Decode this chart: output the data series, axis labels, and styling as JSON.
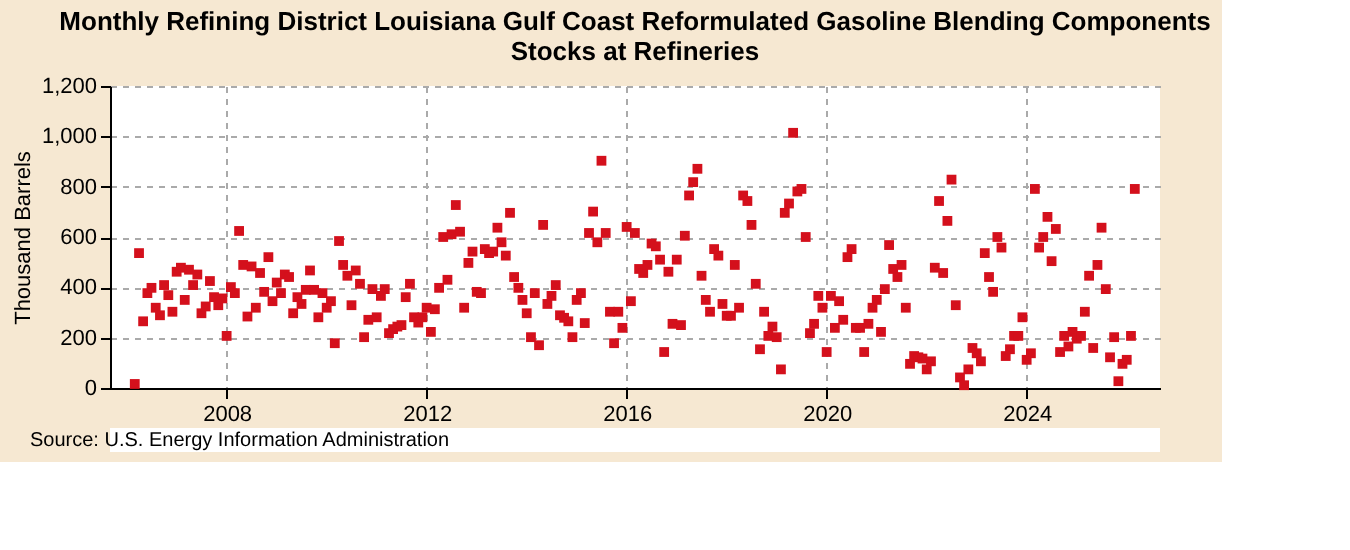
{
  "chart_data": {
    "type": "scatter",
    "title": "Monthly Refining District Louisiana Gulf Coast Reformulated Gasoline Blending Components Stocks at Refineries",
    "ylabel": "Thousand Barrels",
    "annotations": [
      "Source: U.S. Energy Information Administration"
    ],
    "series": [
      {
        "color": "#d4101c",
        "x": [
          "2006-03",
          "2006-04",
          "2006-05",
          "2006-06",
          "2006-07",
          "2006-08",
          "2006-09",
          "2006-10",
          "2006-11",
          "2006-12",
          "2007-01",
          "2007-02",
          "2007-03",
          "2007-04",
          "2007-05",
          "2007-06",
          "2007-07",
          "2007-08",
          "2007-09",
          "2007-10",
          "2007-11",
          "2007-12",
          "2008-01",
          "2008-02",
          "2008-03",
          "2008-04",
          "2008-05",
          "2008-06",
          "2008-07",
          "2008-08",
          "2008-09",
          "2008-10",
          "2008-11",
          "2008-12",
          "2009-01",
          "2009-02",
          "2009-03",
          "2009-04",
          "2009-05",
          "2009-06",
          "2009-07",
          "2009-08",
          "2009-09",
          "2009-10",
          "2009-11",
          "2009-12",
          "2010-01",
          "2010-02",
          "2010-03",
          "2010-04",
          "2010-05",
          "2010-06",
          "2010-07",
          "2010-08",
          "2010-09",
          "2010-10",
          "2010-11",
          "2010-12",
          "2011-01",
          "2011-02",
          "2011-03",
          "2011-04",
          "2011-05",
          "2011-06",
          "2011-07",
          "2011-08",
          "2011-09",
          "2011-10",
          "2011-11",
          "2011-12",
          "2012-01",
          "2012-02",
          "2012-03",
          "2012-04",
          "2012-05",
          "2012-06",
          "2012-07",
          "2012-08",
          "2012-09",
          "2012-10",
          "2012-11",
          "2012-12",
          "2013-01",
          "2013-02",
          "2013-03",
          "2013-04",
          "2013-05",
          "2013-06",
          "2013-07",
          "2013-08",
          "2013-09",
          "2013-10",
          "2013-11",
          "2013-12",
          "2014-01",
          "2014-02",
          "2014-03",
          "2014-04",
          "2014-05",
          "2014-06",
          "2014-07",
          "2014-08",
          "2014-09",
          "2014-10",
          "2014-11",
          "2014-12",
          "2015-01",
          "2015-02",
          "2015-03",
          "2015-04",
          "2015-05",
          "2015-06",
          "2015-07",
          "2015-08",
          "2015-09",
          "2015-10",
          "2015-11",
          "2015-12",
          "2016-01",
          "2016-02",
          "2016-03",
          "2016-04",
          "2016-05",
          "2016-06",
          "2016-07",
          "2016-08",
          "2016-09",
          "2016-10",
          "2016-11",
          "2016-12",
          "2017-01",
          "2017-02",
          "2017-03",
          "2017-04",
          "2017-05",
          "2017-06",
          "2017-07",
          "2017-08",
          "2017-09",
          "2017-10",
          "2017-11",
          "2017-12",
          "2018-01",
          "2018-02",
          "2018-03",
          "2018-04",
          "2018-05",
          "2018-06",
          "2018-07",
          "2018-08",
          "2018-09",
          "2018-10",
          "2018-11",
          "2018-12",
          "2019-01",
          "2019-02",
          "2019-03",
          "2019-04",
          "2019-05",
          "2019-06",
          "2019-07",
          "2019-08",
          "2019-09",
          "2019-10",
          "2019-11",
          "2019-12",
          "2020-01",
          "2020-02",
          "2020-03",
          "2020-04",
          "2020-05",
          "2020-06",
          "2020-07",
          "2020-08",
          "2020-09",
          "2020-10",
          "2020-11",
          "2020-12",
          "2021-01",
          "2021-02",
          "2021-03",
          "2021-04",
          "2021-05",
          "2021-06",
          "2021-07",
          "2021-08",
          "2021-09",
          "2021-10",
          "2021-11",
          "2021-12",
          "2022-01",
          "2022-02",
          "2022-03",
          "2022-04",
          "2022-05",
          "2022-06",
          "2022-07",
          "2022-08",
          "2022-09",
          "2022-10",
          "2022-11",
          "2022-12",
          "2023-01",
          "2023-02",
          "2023-03",
          "2023-04",
          "2023-05",
          "2023-06",
          "2023-07",
          "2023-08",
          "2023-09",
          "2023-10",
          "2023-11",
          "2023-12",
          "2024-01",
          "2024-02",
          "2024-03",
          "2024-04",
          "2024-05",
          "2024-06",
          "2024-07",
          "2024-08",
          "2024-09",
          "2024-10",
          "2024-11",
          "2024-12",
          "2025-01",
          "2025-02",
          "2025-03",
          "2025-04",
          "2025-05",
          "2025-06",
          "2025-07",
          "2025-08",
          "2025-09",
          "2025-10",
          "2025-11",
          "2025-12",
          "2026-01",
          "2026-02",
          "2026-03"
        ],
        "values": [
          16,
          536,
          265,
          377,
          398,
          319,
          289,
          409,
          369,
          303,
          462,
          478,
          350,
          470,
          409,
          451,
          297,
          324,
          425,
          361,
          329,
          356,
          207,
          401,
          377,
          624,
          489,
          284,
          483,
          319,
          457,
          382,
          520,
          345,
          419,
          377,
          451,
          441,
          297,
          361,
          334,
          390,
          467,
          390,
          281,
          377,
          319,
          345,
          178,
          584,
          489,
          446,
          329,
          467,
          414,
          202,
          271,
          393,
          281,
          366,
          393,
          218,
          234,
          244,
          250,
          361,
          414,
          281,
          260,
          281,
          319,
          223,
          313,
          398,
          600,
          430,
          611,
          727,
          621,
          319,
          497,
          542,
          382,
          377,
          552,
          536,
          542,
          637,
          579,
          526,
          696,
          441,
          398,
          350,
          297,
          202,
          377,
          170,
          648,
          334,
          366,
          409,
          289,
          279,
          265,
          202,
          350,
          377,
          258,
          616,
          701,
          579,
          903,
          616,
          303,
          178,
          303,
          239,
          640,
          345,
          616,
          473,
          457,
          489,
          574,
          563,
          510,
          143,
          462,
          255,
          510,
          250,
          605,
          765,
          818,
          871,
          446,
          350,
          303,
          552,
          526,
          334,
          287,
          287,
          489,
          319,
          765,
          743,
          648,
          414,
          154,
          303,
          207,
          244,
          202,
          74,
          696,
          733,
          1014,
          781,
          791,
          600,
          218,
          255,
          366,
          319,
          143,
          366,
          239,
          345,
          271,
          520,
          552,
          239,
          239,
          143,
          255,
          319,
          350,
          223,
          393,
          568,
          473,
          441,
          489,
          319,
          96,
          127,
          122,
          117,
          74,
          106,
          478,
          743,
          457,
          664,
          828,
          329,
          42,
          11,
          74,
          159,
          138,
          106,
          536,
          441,
          382,
          600,
          558,
          127,
          154,
          207,
          207,
          281,
          112,
          138,
          791,
          558,
          600,
          680,
          504,
          632,
          143,
          207,
          165,
          223,
          196,
          207,
          303,
          446,
          159,
          489,
          637,
          393,
          122,
          202,
          27,
          96,
          112,
          207,
          791
        ]
      }
    ],
    "xlim": [
      "2005-09",
      "2026-09"
    ],
    "xticks": [
      "2008",
      "2012",
      "2016",
      "2020",
      "2024"
    ],
    "ylim": [
      0,
      1200
    ],
    "yticks": [
      0,
      200,
      400,
      600,
      800,
      {
        "value": 1000,
        "label": "1,000"
      },
      {
        "value": 1200,
        "label": "1,200"
      }
    ],
    "grid": true,
    "marker": "square"
  }
}
